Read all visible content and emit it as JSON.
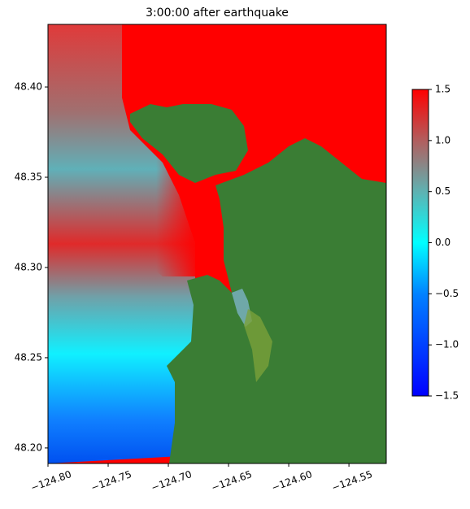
{
  "chart_data": {
    "type": "heatmap",
    "title": "3:00:00 after earthquake",
    "xlim": [
      -124.8,
      -124.519
    ],
    "ylim": [
      48.1914,
      48.4347
    ],
    "xticks": [
      {
        "value": -124.8,
        "label": "−124.80"
      },
      {
        "value": -124.75,
        "label": "−124.75"
      },
      {
        "value": -124.7,
        "label": "−124.70"
      },
      {
        "value": -124.65,
        "label": "−124.65"
      },
      {
        "value": -124.6,
        "label": "−124.60"
      },
      {
        "value": -124.55,
        "label": "−124.55"
      }
    ],
    "yticks": [
      {
        "value": 48.2,
        "label": "48.20"
      },
      {
        "value": 48.25,
        "label": "48.25"
      },
      {
        "value": 48.3,
        "label": "48.30"
      },
      {
        "value": 48.35,
        "label": "48.35"
      },
      {
        "value": 48.4,
        "label": "48.40"
      }
    ],
    "colorbar": {
      "lim": [
        -1.5,
        1.5
      ],
      "ticks": [
        {
          "value": -1.5,
          "label": "−1.5"
        },
        {
          "value": -1.0,
          "label": "−1.0"
        },
        {
          "value": -0.5,
          "label": "−0.5"
        },
        {
          "value": 0.0,
          "label": "0.0"
        },
        0.5,
        {
          "value": 1.0,
          "label": "1.0"
        },
        1.5
      ]
    }
  }
}
